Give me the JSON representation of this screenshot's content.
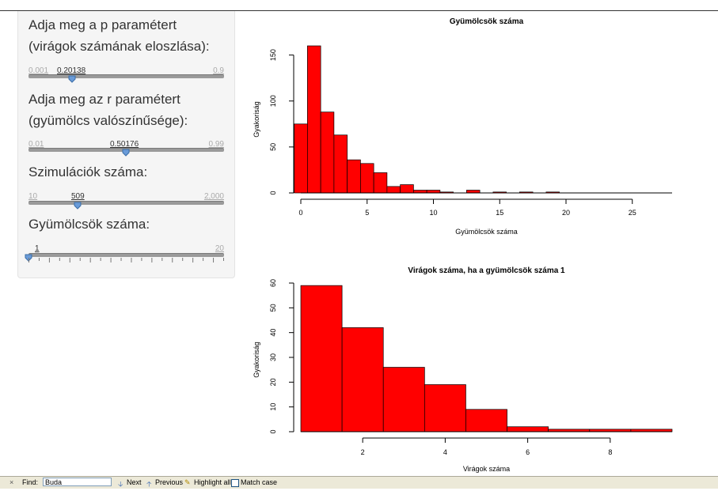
{
  "sidebar": {
    "p_label_line1": "Adja meg a p paramétert",
    "p_label_line2": "(virágok számának eloszlása):",
    "p_min": "0.001",
    "p_max": "0.9",
    "p_value": "0.20138",
    "r_label_line1": "Adja meg az r paramétert",
    "r_label_line2": "(gyümölcs valószínűsége):",
    "r_min": "0.01",
    "r_max": "0.99",
    "r_value": "0.50176",
    "sim_label": "Szimulációk száma:",
    "sim_min": "10",
    "sim_max": "2,000",
    "sim_value": "509",
    "fruit_label": "Gyümölcsök száma:",
    "fruit_min": "1",
    "fruit_max": "20",
    "fruit_value": "1"
  },
  "sliders": {
    "p_fraction": 0.2228,
    "r_fraction": 0.4967,
    "sim_fraction": 0.2508,
    "fruit_fraction": 0.0
  },
  "findbar": {
    "close": "×",
    "find_label": "Find:",
    "find_value": "Buda",
    "next": "Next",
    "previous": "Previous",
    "highlight": "Highlight all",
    "match_case": "Match case"
  },
  "colors": {
    "bar_fill": "#ff0000",
    "bar_stroke": "#000000",
    "slider_handle": "#6a9bd8"
  },
  "chart_data": [
    {
      "type": "bar",
      "title": "Gyümölcsök száma",
      "xlabel": "Gyümölcsök száma",
      "ylabel": "Gyakoriság",
      "xlim": [
        0,
        28
      ],
      "ylim": [
        0,
        160
      ],
      "xticks": [
        "0",
        "5",
        "10",
        "15",
        "20",
        "25"
      ],
      "yticks": [
        "0",
        "50",
        "100",
        "150"
      ],
      "bins": [
        {
          "x0": -0.5,
          "x1": 0.5,
          "value": 75
        },
        {
          "x0": 0.5,
          "x1": 1.5,
          "value": 160
        },
        {
          "x0": 1.5,
          "x1": 2.5,
          "value": 88
        },
        {
          "x0": 2.5,
          "x1": 3.5,
          "value": 63
        },
        {
          "x0": 3.5,
          "x1": 4.5,
          "value": 36
        },
        {
          "x0": 4.5,
          "x1": 5.5,
          "value": 32
        },
        {
          "x0": 5.5,
          "x1": 6.5,
          "value": 22
        },
        {
          "x0": 6.5,
          "x1": 7.5,
          "value": 7
        },
        {
          "x0": 7.5,
          "x1": 8.5,
          "value": 9
        },
        {
          "x0": 8.5,
          "x1": 9.5,
          "value": 3
        },
        {
          "x0": 9.5,
          "x1": 10.5,
          "value": 3
        },
        {
          "x0": 10.5,
          "x1": 11.5,
          "value": 1
        },
        {
          "x0": 12.5,
          "x1": 13.5,
          "value": 3
        },
        {
          "x0": 14.5,
          "x1": 15.5,
          "value": 1
        },
        {
          "x0": 16.5,
          "x1": 17.5,
          "value": 1
        },
        {
          "x0": 18.5,
          "x1": 19.5,
          "value": 1
        }
      ]
    },
    {
      "type": "bar",
      "title": "Virágok száma, ha a gyümölcsök száma  1",
      "xlabel": "Virágok száma",
      "ylabel": "Gyakoriság",
      "xlim": [
        0.5,
        9.5
      ],
      "ylim": [
        0,
        60
      ],
      "xticks": [
        "2",
        "4",
        "6",
        "8"
      ],
      "yticks": [
        "0",
        "10",
        "20",
        "30",
        "40",
        "50",
        "60"
      ],
      "bins": [
        {
          "x0": 0.5,
          "x1": 1.5,
          "value": 59
        },
        {
          "x0": 1.5,
          "x1": 2.5,
          "value": 42
        },
        {
          "x0": 2.5,
          "x1": 3.5,
          "value": 26
        },
        {
          "x0": 3.5,
          "x1": 4.5,
          "value": 19
        },
        {
          "x0": 4.5,
          "x1": 5.5,
          "value": 9
        },
        {
          "x0": 5.5,
          "x1": 6.5,
          "value": 2
        },
        {
          "x0": 6.5,
          "x1": 7.5,
          "value": 1
        },
        {
          "x0": 7.5,
          "x1": 8.5,
          "value": 1
        },
        {
          "x0": 8.5,
          "x1": 9.5,
          "value": 1
        }
      ]
    }
  ]
}
